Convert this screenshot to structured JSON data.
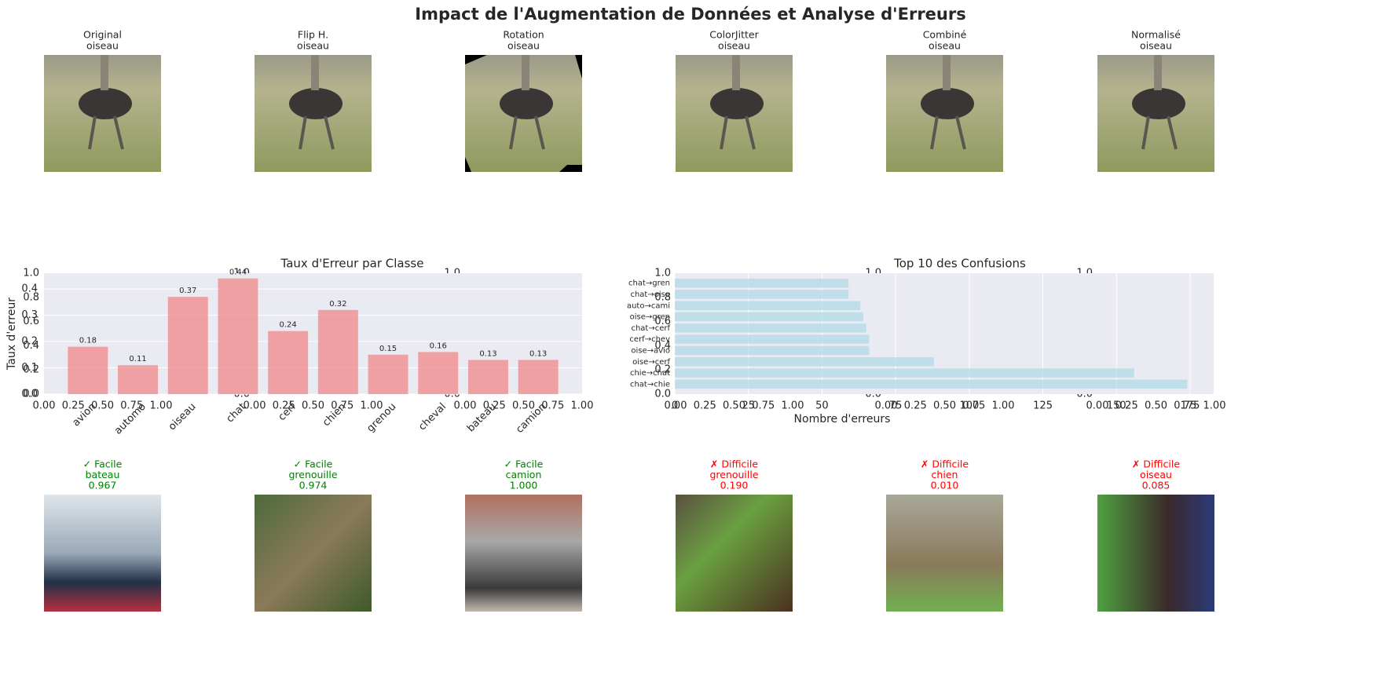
{
  "title": "Impact de l'Augmentation de Données et Analyse d'Erreurs",
  "augmentations": [
    {
      "title": "Original",
      "label": "oiseau"
    },
    {
      "title": "Flip H.",
      "label": "oiseau"
    },
    {
      "title": "Rotation",
      "label": "oiseau"
    },
    {
      "title": "ColorJitter",
      "label": "oiseau"
    },
    {
      "title": "Combiné",
      "label": "oiseau"
    },
    {
      "title": "Normalisé",
      "label": "oiseau"
    }
  ],
  "chart_data": [
    {
      "type": "empty",
      "xlim": [
        0,
        1
      ],
      "ylim": [
        0,
        1
      ],
      "xticks": [
        {
          "value": 0,
          "label": "0.00"
        },
        {
          "value": 0.25,
          "label": "0.25"
        },
        {
          "value": 0.5,
          "label": "0.50"
        },
        {
          "value": 0.75,
          "label": "0.75"
        },
        {
          "value": 1,
          "label": "1.00"
        }
      ],
      "yticks": [
        {
          "value": 0,
          "label": "0.0"
        },
        0.2,
        0.4,
        0.6,
        0.8,
        {
          "value": 1,
          "label": "1.0"
        }
      ]
    },
    {
      "type": "bar",
      "title": "Taux d'Erreur par Classe",
      "ylabel": "Taux d'erreur",
      "categories": [
        "avion",
        "automo",
        "oiseau",
        "chat",
        "cerf",
        "chien",
        "grenou",
        "cheval",
        "bateau",
        "camion"
      ],
      "values": [
        0.18,
        0.11,
        0.37,
        0.44,
        0.24,
        0.32,
        0.15,
        0.16,
        0.13,
        0.13
      ],
      "color": "#f08080",
      "alpha": 0.7,
      "ylim": [
        0,
        0.46
      ],
      "yticks": [
        {
          "value": 0,
          "label": "0.0"
        },
        0.1,
        0.2,
        0.3,
        0.4
      ],
      "grid": true
    },
    {
      "type": "barh",
      "title": "Top 10 des Confusions",
      "xlabel": "Nombre d'erreurs",
      "categories": [
        "chat→chie",
        "chie→chat",
        "oise→cerf",
        "oise→avio",
        "cerf→chev",
        "chat→cerf",
        "oise→gren",
        "auto→cami",
        "chat→oise",
        "chat→gren"
      ],
      "values": [
        174,
        156,
        88,
        66,
        66,
        65,
        64,
        63,
        59,
        59
      ],
      "color": "#add8e6",
      "alpha": 0.7,
      "xlim": [
        0,
        183
      ],
      "xticks": [
        0,
        25,
        50,
        75,
        100,
        125,
        150,
        175
      ],
      "grid": true
    }
  ],
  "predictions": [
    {
      "status": "✓ Facile",
      "label": "bateau",
      "score": "0.967",
      "color": "green"
    },
    {
      "status": "✓ Facile",
      "label": "grenouille",
      "score": "0.974",
      "color": "green"
    },
    {
      "status": "✓ Facile",
      "label": "camion",
      "score": "1.000",
      "color": "green"
    },
    {
      "status": "✗ Difficile",
      "label": "grenouille",
      "score": "0.190",
      "color": "red"
    },
    {
      "status": "✗ Difficile",
      "label": "chien",
      "score": "0.010",
      "color": "red"
    },
    {
      "status": "✗ Difficile",
      "label": "oiseau",
      "score": "0.085",
      "color": "red"
    }
  ]
}
